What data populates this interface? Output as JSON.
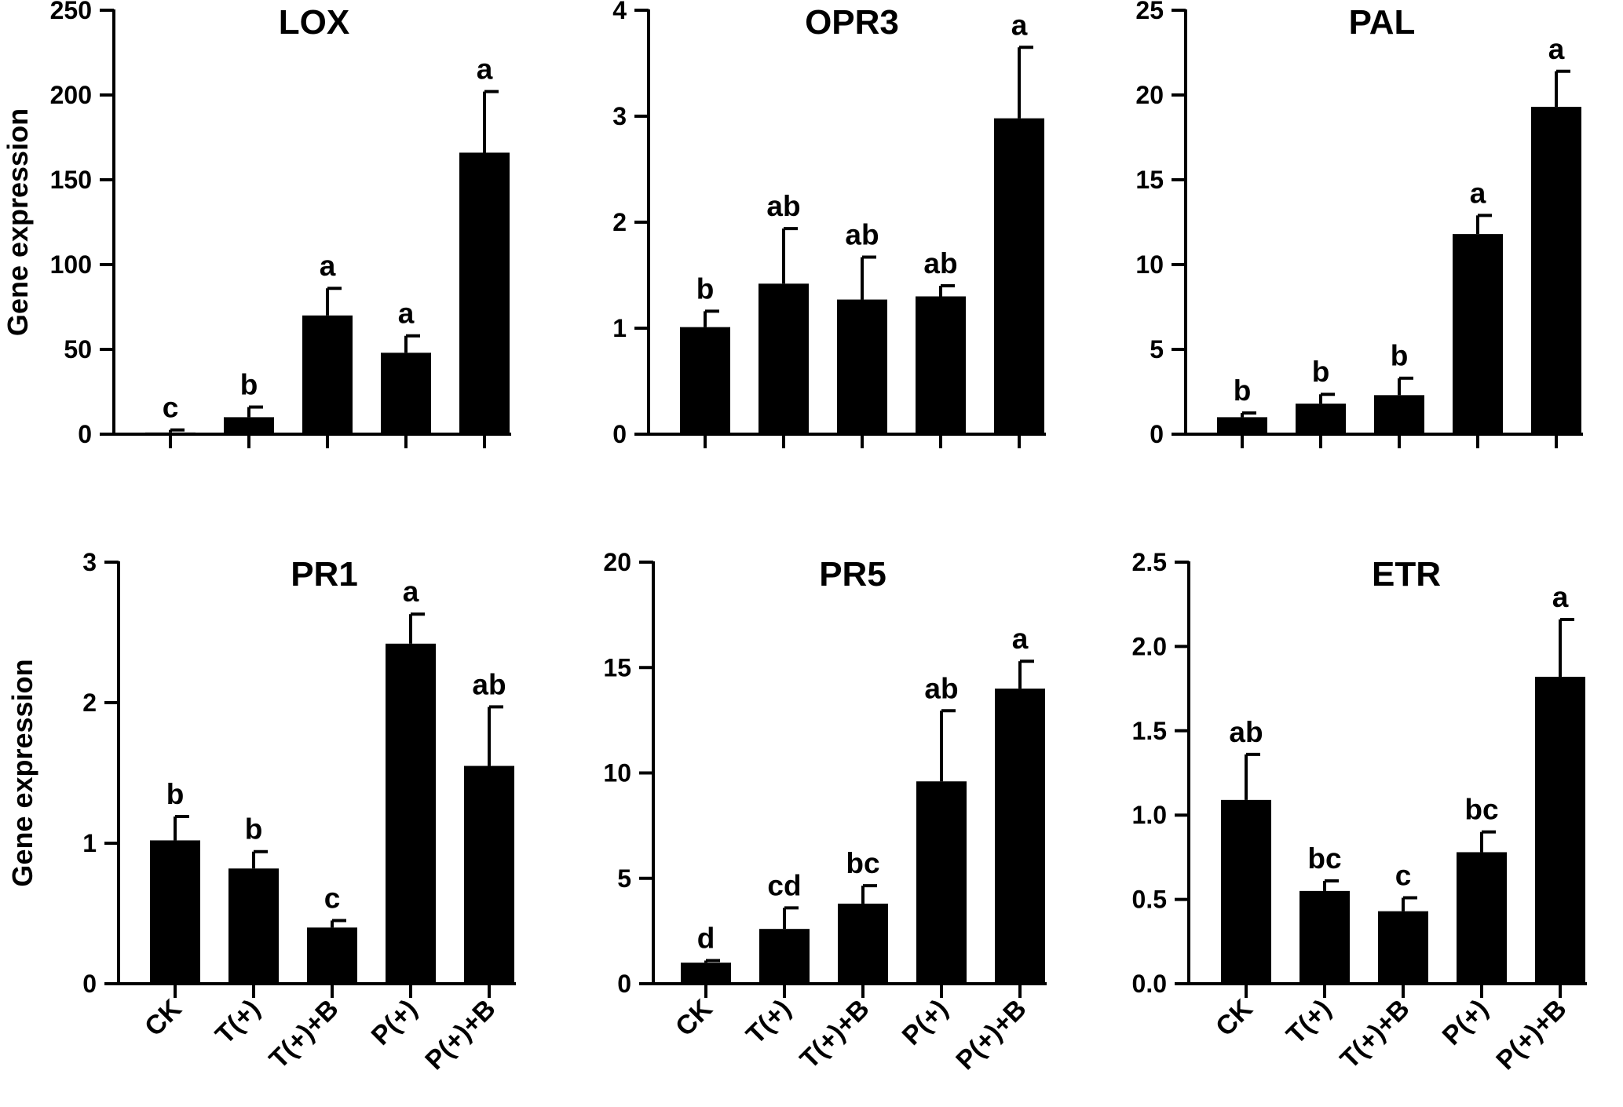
{
  "figure": {
    "ylabel": "Gene expression",
    "categories": [
      "CK",
      "T(+)",
      "T(+)+B",
      "P(+)",
      "P(+)+B"
    ]
  },
  "chart_data": [
    {
      "type": "bar",
      "title": "LOX",
      "ylabel": "Gene expression",
      "ylim": [
        0,
        250
      ],
      "yticks": [
        0,
        50,
        100,
        150,
        200,
        250
      ],
      "ytick_labels": [
        "0",
        "50",
        "100",
        "150",
        "200",
        "250"
      ],
      "categories": [
        "CK",
        "T(+)",
        "T(+)+B",
        "P(+)",
        "P(+)+B"
      ],
      "values": [
        1,
        10,
        70,
        48,
        166
      ],
      "errors": [
        1.5,
        6,
        16,
        10,
        36
      ],
      "labels": [
        "c",
        "b",
        "a",
        "a",
        "a"
      ],
      "show_xticklabels": false,
      "show_ylabel": true
    },
    {
      "type": "bar",
      "title": "OPR3",
      "ylabel": "",
      "ylim": [
        0,
        4
      ],
      "yticks": [
        0,
        1,
        2,
        3,
        4
      ],
      "ytick_labels": [
        "0",
        "1",
        "2",
        "3",
        "4"
      ],
      "categories": [
        "CK",
        "T(+)",
        "T(+)+B",
        "P(+)",
        "P(+)+B"
      ],
      "values": [
        1.01,
        1.42,
        1.27,
        1.3,
        2.98
      ],
      "errors": [
        0.15,
        0.52,
        0.4,
        0.1,
        0.67
      ],
      "labels": [
        "b",
        "ab",
        "ab",
        "ab",
        "a"
      ],
      "show_xticklabels": false,
      "show_ylabel": false
    },
    {
      "type": "bar",
      "title": "PAL",
      "ylabel": "",
      "ylim": [
        0,
        25
      ],
      "yticks": [
        0,
        5,
        10,
        15,
        20,
        25
      ],
      "ytick_labels": [
        "0",
        "5",
        "10",
        "15",
        "20",
        "25"
      ],
      "categories": [
        "CK",
        "T(+)",
        "T(+)+B",
        "P(+)",
        "P(+)+B"
      ],
      "values": [
        1.0,
        1.8,
        2.3,
        11.8,
        19.3
      ],
      "errors": [
        0.25,
        0.55,
        1.0,
        1.1,
        2.1
      ],
      "labels": [
        "b",
        "b",
        "b",
        "a",
        "a"
      ],
      "show_xticklabels": false,
      "show_ylabel": false
    },
    {
      "type": "bar",
      "title": "PR1",
      "ylabel": "Gene expression",
      "ylim": [
        0,
        3
      ],
      "yticks": [
        0,
        1,
        2,
        3
      ],
      "ytick_labels": [
        "0",
        "1",
        "2",
        "3"
      ],
      "categories": [
        "CK",
        "T(+)",
        "T(+)+B",
        "P(+)",
        "P(+)+B"
      ],
      "values": [
        1.02,
        0.82,
        0.4,
        2.42,
        1.55
      ],
      "errors": [
        0.17,
        0.12,
        0.05,
        0.21,
        0.42
      ],
      "labels": [
        "b",
        "b",
        "c",
        "a",
        "ab"
      ],
      "show_xticklabels": true,
      "show_ylabel": true
    },
    {
      "type": "bar",
      "title": "PR5",
      "ylabel": "",
      "ylim": [
        0,
        20
      ],
      "yticks": [
        0,
        5,
        10,
        15,
        20
      ],
      "ytick_labels": [
        "0",
        "5",
        "10",
        "15",
        "20"
      ],
      "categories": [
        "CK",
        "T(+)",
        "T(+)+B",
        "P(+)",
        "P(+)+B"
      ],
      "values": [
        1.0,
        2.6,
        3.8,
        9.6,
        14.0
      ],
      "errors": [
        0.1,
        1.0,
        0.85,
        3.35,
        1.3
      ],
      "labels": [
        "d",
        "cd",
        "bc",
        "ab",
        "a"
      ],
      "show_xticklabels": true,
      "show_ylabel": false
    },
    {
      "type": "bar",
      "title": "ETR",
      "ylabel": "",
      "ylim": [
        0,
        2.5
      ],
      "yticks": [
        0,
        0.5,
        1.0,
        1.5,
        2.0,
        2.5
      ],
      "ytick_labels": [
        "0.0",
        "0.5",
        "1.0",
        "1.5",
        "2.0",
        "2.5"
      ],
      "categories": [
        "CK",
        "T(+)",
        "T(+)+B",
        "P(+)",
        "P(+)+B"
      ],
      "values": [
        1.09,
        0.55,
        0.43,
        0.78,
        1.82
      ],
      "errors": [
        0.27,
        0.06,
        0.08,
        0.12,
        0.34
      ],
      "labels": [
        "ab",
        "bc",
        "c",
        "bc",
        "a"
      ],
      "show_xticklabels": true,
      "show_ylabel": false
    }
  ]
}
